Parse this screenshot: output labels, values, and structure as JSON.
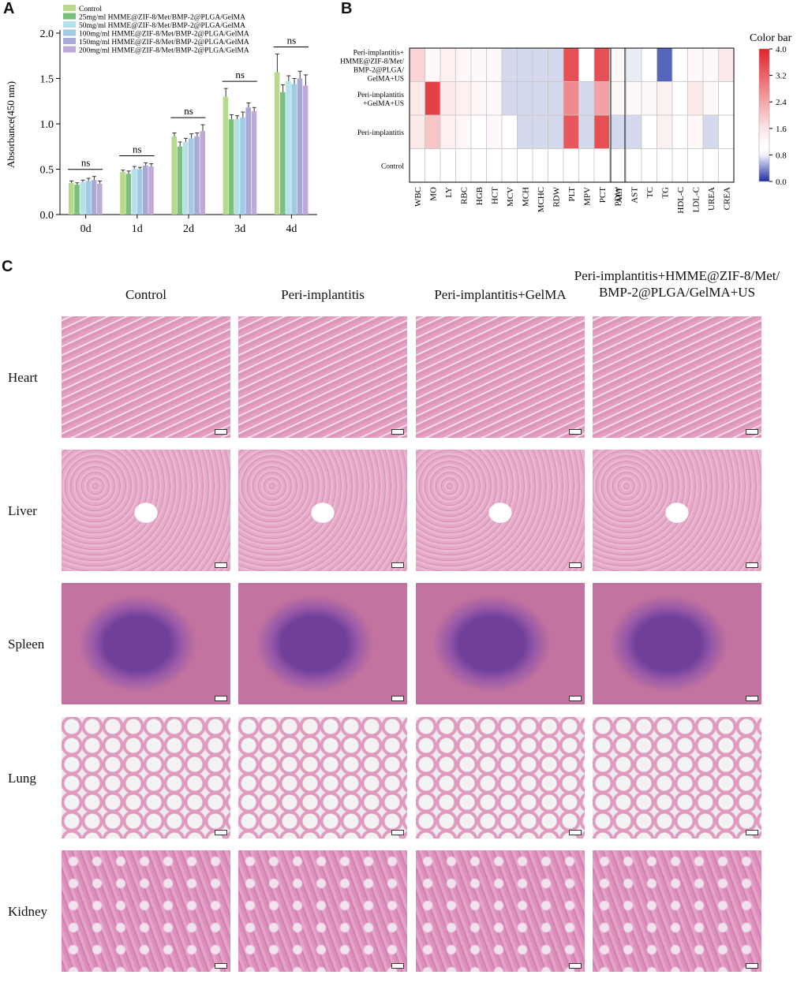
{
  "panels": {
    "a": "A",
    "b": "B",
    "c": "C"
  },
  "bar_chart": {
    "ylabel": "Absorbance(450 nm)",
    "categories": [
      "0d",
      "1d",
      "2d",
      "3d",
      "4d"
    ],
    "legend": [
      "Control",
      "25mg/ml HMME@ZIF-8/Met/BMP-2@PLGA/GelMA",
      "50mg/ml HMME@ZIF-8/Met/BMP-2@PLGA/GelMA",
      "100mg/ml HMME@ZIF-8/Met/BMP-2@PLGA/GelMA",
      "150mg/ml HMME@ZIF-8/Met/BMP-2@PLGA/GelMA",
      "200mg/ml HMME@ZIF-8/Met/BMP-2@PLGA/GelMA"
    ],
    "sig_label": "ns",
    "yticks": [
      "0.0",
      "0.5",
      "1.0",
      "1.5",
      "2.0"
    ]
  },
  "heatmap": {
    "title": "Color bar",
    "rows": [
      "Peri-implantitis+ HMME@ZIF-8/Met/ BMP-2@PLGA/ GelMA+US",
      "Peri-implantitis +GelMA+US",
      "Peri-implantitis",
      "Control"
    ],
    "cols_left": [
      "WBC",
      "MO",
      "LY",
      "RBC",
      "HGB",
      "HCT",
      "MCV",
      "MCH",
      "MCHC",
      "RDW",
      "PLT",
      "MPV",
      "PCT",
      "PDW"
    ],
    "cols_right": [
      "ALT",
      "AST",
      "TC",
      "TG",
      "HDL-C",
      "LDL-C",
      "UREA",
      "CREA"
    ],
    "scale_ticks": [
      "4.0",
      "3.2",
      "2.4",
      "1.6",
      "0.8",
      "0.0"
    ]
  },
  "histology": {
    "columns": [
      "Control",
      "Peri-implantitis",
      "Peri-implantitis+GelMA",
      "Peri-implantitis+HMME@ZIF-8/Met/ BMP-2@PLGA/GelMA+US"
    ],
    "rows": [
      "Heart",
      "Liver",
      "Spleen",
      "Lung",
      "Kidney"
    ]
  },
  "chart_data": [
    {
      "type": "bar",
      "categories": [
        "0d",
        "1d",
        "2d",
        "3d",
        "4d"
      ],
      "ylabel": "Absorbance(450 nm)",
      "ylim": [
        0,
        2.0
      ],
      "series": [
        {
          "name": "Control",
          "values": [
            0.35,
            0.47,
            0.86,
            1.3,
            1.57
          ],
          "errors": [
            0.02,
            0.02,
            0.04,
            0.09,
            0.2
          ]
        },
        {
          "name": "25mg/ml HMME@ZIF-8/Met/BMP-2@PLGA/GelMA",
          "values": [
            0.33,
            0.45,
            0.75,
            1.05,
            1.35
          ],
          "errors": [
            0.02,
            0.03,
            0.05,
            0.05,
            0.08
          ]
        },
        {
          "name": "50mg/ml HMME@ZIF-8/Met/BMP-2@PLGA/GelMA",
          "values": [
            0.36,
            0.5,
            0.8,
            1.05,
            1.47
          ],
          "errors": [
            0.02,
            0.03,
            0.04,
            0.04,
            0.06
          ]
        },
        {
          "name": "100mg/ml HMME@ZIF-8/Met/BMP-2@PLGA/GelMA",
          "values": [
            0.37,
            0.5,
            0.84,
            1.07,
            1.44
          ],
          "errors": [
            0.03,
            0.02,
            0.05,
            0.06,
            0.06
          ]
        },
        {
          "name": "150mg/ml HMME@ZIF-8/Met/BMP-2@PLGA/GelMA",
          "values": [
            0.38,
            0.54,
            0.86,
            1.18,
            1.5
          ],
          "errors": [
            0.04,
            0.03,
            0.04,
            0.05,
            0.08
          ]
        },
        {
          "name": "200mg/ml HMME@ZIF-8/Met/BMP-2@PLGA/GelMA",
          "values": [
            0.34,
            0.53,
            0.92,
            1.14,
            1.42
          ],
          "errors": [
            0.03,
            0.03,
            0.07,
            0.04,
            0.12
          ]
        }
      ],
      "colors": [
        "#b8d88b",
        "#7cbf7c",
        "#b6e0ea",
        "#9fcbe6",
        "#a9a9d6",
        "#c0a8d8"
      ],
      "legend_position": "top-left"
    },
    {
      "type": "heatmap",
      "title": "Color bar",
      "x": [
        "WBC",
        "MO",
        "LY",
        "RBC",
        "HGB",
        "HCT",
        "MCV",
        "MCH",
        "MCHC",
        "RDW",
        "PLT",
        "MPV",
        "PCT",
        "PDW",
        "ALT",
        "AST",
        "TC",
        "TG",
        "HDL-C",
        "LDL-C",
        "UREA",
        "CREA"
      ],
      "y": [
        "Peri-implantitis+ HMME@ZIF-8/Met/ BMP-2@PLGA/ GelMA+US",
        "Peri-implantitis +GelMA+US",
        "Peri-implantitis",
        "Control"
      ],
      "values": [
        [
          1.6,
          1.1,
          1.2,
          1.1,
          1.1,
          1.1,
          0.8,
          0.8,
          0.8,
          0.8,
          3.4,
          1.0,
          3.4,
          1.1,
          1.1,
          0.9,
          1.0,
          0.2,
          1.0,
          1.1,
          1.1,
          1.3
        ],
        [
          1.3,
          3.6,
          1.3,
          1.2,
          1.1,
          1.1,
          0.8,
          0.8,
          0.8,
          0.8,
          2.6,
          0.8,
          2.3,
          1.1,
          1.1,
          1.1,
          1.1,
          1.2,
          1.0,
          1.3,
          1.1,
          1.0
        ],
        [
          1.3,
          1.8,
          1.2,
          1.1,
          1.0,
          1.1,
          1.0,
          0.8,
          0.8,
          0.8,
          3.3,
          0.8,
          3.4,
          1.1,
          0.8,
          0.8,
          1.0,
          1.2,
          1.0,
          1.1,
          0.8,
          1.0
        ],
        [
          1.0,
          1.0,
          1.0,
          1.0,
          1.0,
          1.0,
          1.0,
          1.0,
          1.0,
          1.0,
          1.0,
          1.0,
          1.0,
          1.0,
          1.0,
          1.0,
          1.0,
          1.0,
          1.0,
          1.0,
          1.0,
          1.0
        ]
      ],
      "scale": [
        0.0,
        4.0
      ],
      "colors": {
        "low": "#2b3fa8",
        "mid": "#ffffff",
        "high": "#e0242b"
      }
    }
  ]
}
